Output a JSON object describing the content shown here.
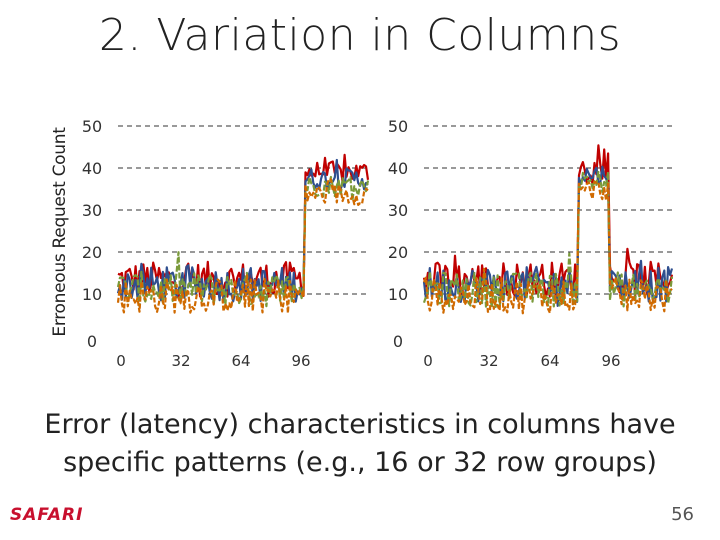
{
  "slide": {
    "title": "2. Variation in Columns",
    "caption_line1": "Error (latency) characteristics in columns have",
    "caption_line2": "specific patterns (e.g., 16 or 32 row groups)",
    "logo": "SAFARI",
    "page_number": "56",
    "colors": {
      "logo": "#c8102e",
      "grid": "#333333"
    }
  },
  "chart_data": [
    {
      "type": "line",
      "ylabel": "Erroneous Request Count",
      "xlabel": "",
      "xticks": [
        "0",
        "32",
        "64",
        "96"
      ],
      "yticks": [
        "0",
        "10",
        "20",
        "30",
        "40",
        "50"
      ],
      "xlim": [
        0,
        128
      ],
      "ylim": [
        0,
        50
      ],
      "grid": "horizontal dashed",
      "series_colors": [
        "#c00000",
        "#2f4f8f",
        "#7a9a3a",
        "#d06a00"
      ],
      "segments": [
        {
          "x_range": [
            0,
            95
          ],
          "level": 12
        },
        {
          "x_range": [
            96,
            112
          ],
          "level": 37
        },
        {
          "x_range": [
            112,
            128
          ],
          "level": 37
        }
      ]
    },
    {
      "type": "line",
      "ylabel": "",
      "xlabel": "",
      "xticks": [
        "0",
        "32",
        "64",
        "96"
      ],
      "yticks": [
        "0",
        "10",
        "20",
        "30",
        "40",
        "50"
      ],
      "xlim": [
        0,
        128
      ],
      "ylim": [
        0,
        50
      ],
      "grid": "horizontal dashed",
      "series_colors": [
        "#c00000",
        "#2f4f8f",
        "#7a9a3a",
        "#d06a00"
      ],
      "segments": [
        {
          "x_range": [
            0,
            80
          ],
          "level": 12
        },
        {
          "x_range": [
            80,
            96
          ],
          "level": 38
        },
        {
          "x_range": [
            96,
            128
          ],
          "level": 12
        }
      ]
    }
  ]
}
